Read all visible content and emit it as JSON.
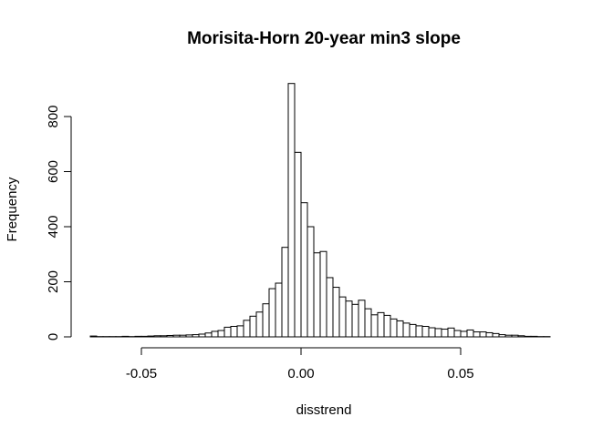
{
  "chart_data": {
    "type": "bar",
    "title": "Morisita-Horn 20-year min3 slope",
    "xlabel": "disstrend",
    "ylabel": "Frequency",
    "bin_width": 0.002,
    "x_start": -0.066,
    "xlim": [
      -0.066,
      0.08
    ],
    "ylim": [
      0,
      920
    ],
    "x_ticks": [
      -0.05,
      0.0,
      0.05
    ],
    "x_tick_labels": [
      "-0.05",
      "0.00",
      "0.05"
    ],
    "y_ticks": [
      0,
      200,
      400,
      600,
      800
    ],
    "y_tick_labels": [
      "0",
      "200",
      "400",
      "600",
      "800"
    ],
    "values": [
      3,
      1,
      1,
      1,
      1,
      2,
      1,
      2,
      2,
      3,
      4,
      4,
      5,
      6,
      6,
      7,
      8,
      10,
      14,
      20,
      23,
      35,
      38,
      40,
      60,
      75,
      90,
      120,
      175,
      195,
      325,
      920,
      670,
      487,
      400,
      305,
      310,
      215,
      180,
      145,
      130,
      118,
      133,
      102,
      80,
      88,
      78,
      65,
      58,
      50,
      45,
      40,
      38,
      33,
      30,
      28,
      32,
      23,
      20,
      25,
      18,
      18,
      15,
      12,
      8,
      6,
      6,
      4,
      2,
      2,
      1,
      1,
      0
    ]
  }
}
